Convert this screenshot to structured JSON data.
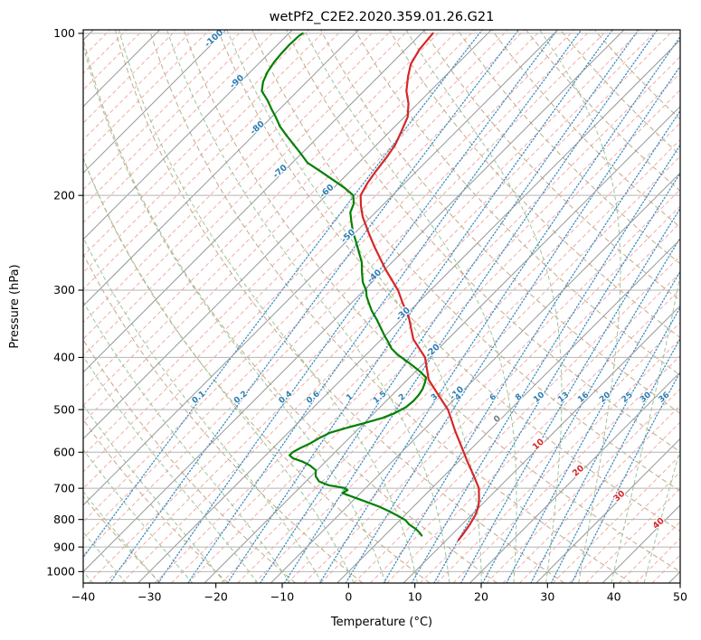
{
  "chart_data": {
    "type": "line",
    "subtype": "skew-t-log-p-sounding",
    "title": "wetPf2_C2E2.2020.359.01.26.G21",
    "xlabel": "Temperature (°C)",
    "ylabel": "Pressure (hPa)",
    "xlim": [
      -40,
      50
    ],
    "x_ticks": [
      -40,
      -30,
      -20,
      -10,
      0,
      10,
      20,
      30,
      40,
      50
    ],
    "pressure_ticks": [
      100,
      200,
      300,
      400,
      500,
      600,
      700,
      800,
      900,
      1000
    ],
    "pressure_range": [
      1050,
      98.5
    ],
    "skew_c_per_decade": 81,
    "grid": true,
    "legend": "none",
    "isotherms": {
      "start": -160,
      "end": 60,
      "major_step": 10,
      "minor_step": 2.5
    },
    "isotherm_labels": [
      {
        "t": -100,
        "p": 103
      },
      {
        "t": -90,
        "p": 124
      },
      {
        "t": -80,
        "p": 151
      },
      {
        "t": -70,
        "p": 182
      },
      {
        "t": -60,
        "p": 198
      },
      {
        "t": -50,
        "p": 240
      },
      {
        "t": -40,
        "p": 285
      },
      {
        "t": -30,
        "p": 335
      },
      {
        "t": -20,
        "p": 392
      },
      {
        "t": -10,
        "p": 470
      },
      {
        "t": 0,
        "p": 525
      },
      {
        "t": 10,
        "p": 585
      },
      {
        "t": 20,
        "p": 655
      },
      {
        "t": 30,
        "p": 730
      },
      {
        "t": 40,
        "p": 820
      }
    ],
    "mixing_ratio_lines_g_kg": [
      0.1,
      0.2,
      0.4,
      0.6,
      1,
      1.5,
      2,
      3,
      4,
      6,
      8,
      10,
      13,
      16,
      20,
      25,
      30,
      36
    ],
    "mixing_ratio_label_pressure": 478,
    "dry_adiabats": {
      "theta_start_c": -30,
      "theta_end_c": 170,
      "step_c": 10
    },
    "moist_adiabats": {
      "t0_start_c": -40,
      "t0_end_c": 45,
      "step_c": 5
    },
    "series": [
      {
        "name": "temperature",
        "color": "#d62728",
        "points_p_hpa_t_c": [
          [
            873,
            11.8
          ],
          [
            850,
            11.6
          ],
          [
            818,
            11.2
          ],
          [
            785,
            10.6
          ],
          [
            757,
            9.8
          ],
          [
            730,
            8.6
          ],
          [
            700,
            7.1
          ],
          [
            675,
            5.3
          ],
          [
            650,
            3.4
          ],
          [
            625,
            1.4
          ],
          [
            600,
            -0.6
          ],
          [
            575,
            -2.7
          ],
          [
            550,
            -4.9
          ],
          [
            525,
            -7.1
          ],
          [
            500,
            -9.4
          ],
          [
            470,
            -13.0
          ],
          [
            440,
            -16.8
          ],
          [
            420,
            -18.7
          ],
          [
            400,
            -20.7
          ],
          [
            370,
            -25.2
          ],
          [
            336,
            -29.3
          ],
          [
            318,
            -32.1
          ],
          [
            300,
            -34.9
          ],
          [
            275,
            -39.8
          ],
          [
            250,
            -44.8
          ],
          [
            235,
            -47.9
          ],
          [
            219,
            -51.3
          ],
          [
            209,
            -53.2
          ],
          [
            200,
            -54.8
          ],
          [
            190,
            -55.6
          ],
          [
            181,
            -56.1
          ],
          [
            170,
            -56.6
          ],
          [
            161,
            -57.2
          ],
          [
            152,
            -58.3
          ],
          [
            143,
            -59.5
          ],
          [
            135,
            -61.4
          ],
          [
            128,
            -63.6
          ],
          [
            120,
            -65.6
          ],
          [
            114,
            -67.0
          ],
          [
            107,
            -67.9
          ],
          [
            100,
            -68.3
          ]
        ]
      },
      {
        "name": "dewpoint",
        "color": "#008000",
        "points_p_hpa_t_c": [
          [
            857,
            5.6
          ],
          [
            846,
            4.8
          ],
          [
            834,
            3.8
          ],
          [
            818,
            2.1
          ],
          [
            802,
            0.8
          ],
          [
            788,
            -0.9
          ],
          [
            772,
            -3.0
          ],
          [
            757,
            -5.2
          ],
          [
            742,
            -7.8
          ],
          [
            728,
            -10.3
          ],
          [
            714,
            -12.8
          ],
          [
            706,
            -12.4
          ],
          [
            699,
            -13.2
          ],
          [
            691,
            -16.0
          ],
          [
            680,
            -18.0
          ],
          [
            665,
            -19.3
          ],
          [
            648,
            -20.2
          ],
          [
            635,
            -21.8
          ],
          [
            624,
            -23.6
          ],
          [
            616,
            -25.4
          ],
          [
            608,
            -26.4
          ],
          [
            600,
            -26.4
          ],
          [
            590,
            -25.9
          ],
          [
            578,
            -25.1
          ],
          [
            565,
            -24.5
          ],
          [
            552,
            -23.7
          ],
          [
            540,
            -21.8
          ],
          [
            530,
            -20.0
          ],
          [
            518,
            -18.0
          ],
          [
            508,
            -16.9
          ],
          [
            495,
            -16.1
          ],
          [
            482,
            -15.9
          ],
          [
            470,
            -16.0
          ],
          [
            458,
            -16.3
          ],
          [
            446,
            -16.9
          ],
          [
            436,
            -17.5
          ],
          [
            425,
            -19.3
          ],
          [
            415,
            -21.2
          ],
          [
            405,
            -23.2
          ],
          [
            395,
            -25.3
          ],
          [
            385,
            -27.1
          ],
          [
            377,
            -28.2
          ],
          [
            365,
            -30.0
          ],
          [
            352,
            -31.9
          ],
          [
            340,
            -33.7
          ],
          [
            328,
            -35.7
          ],
          [
            318,
            -37.2
          ],
          [
            308,
            -38.7
          ],
          [
            300,
            -39.7
          ],
          [
            290,
            -41.4
          ],
          [
            278,
            -43.0
          ],
          [
            266,
            -44.6
          ],
          [
            255,
            -46.5
          ],
          [
            244,
            -48.5
          ],
          [
            233,
            -50.6
          ],
          [
            224,
            -52.2
          ],
          [
            215,
            -53.8
          ],
          [
            207,
            -54.6
          ],
          [
            200,
            -55.9
          ],
          [
            194,
            -58.2
          ],
          [
            188,
            -60.9
          ],
          [
            181,
            -64.2
          ],
          [
            174,
            -67.7
          ],
          [
            167,
            -70.2
          ],
          [
            161,
            -72.5
          ],
          [
            155,
            -74.9
          ],
          [
            149,
            -77.3
          ],
          [
            143,
            -79.4
          ],
          [
            138,
            -81.3
          ],
          [
            133,
            -83.2
          ],
          [
            128,
            -85.4
          ],
          [
            123,
            -86.6
          ],
          [
            118,
            -87.4
          ],
          [
            113,
            -87.9
          ],
          [
            109,
            -88.1
          ],
          [
            105,
            -88.2
          ],
          [
            101,
            -88.1
          ],
          [
            100,
            -87.9
          ]
        ]
      }
    ],
    "colors": {
      "temperature_line": "#d62728",
      "dewpoint_line": "#008000",
      "isotherm_major": "#979797",
      "isotherm_minor": "#f0a49c",
      "dry_adiabat": "#c2a98a",
      "moist_adiabat": "#99c699",
      "mixing_ratio": "#3d8ec4",
      "pressure_gridline": "#b4b4b4",
      "isotherm_label_neg": "#2d7db3",
      "isotherm_label_zero": "#7a7a7a",
      "isotherm_label_pos": "#d62728",
      "mixing_label": "#2d7db3",
      "axis": "#000000"
    }
  }
}
